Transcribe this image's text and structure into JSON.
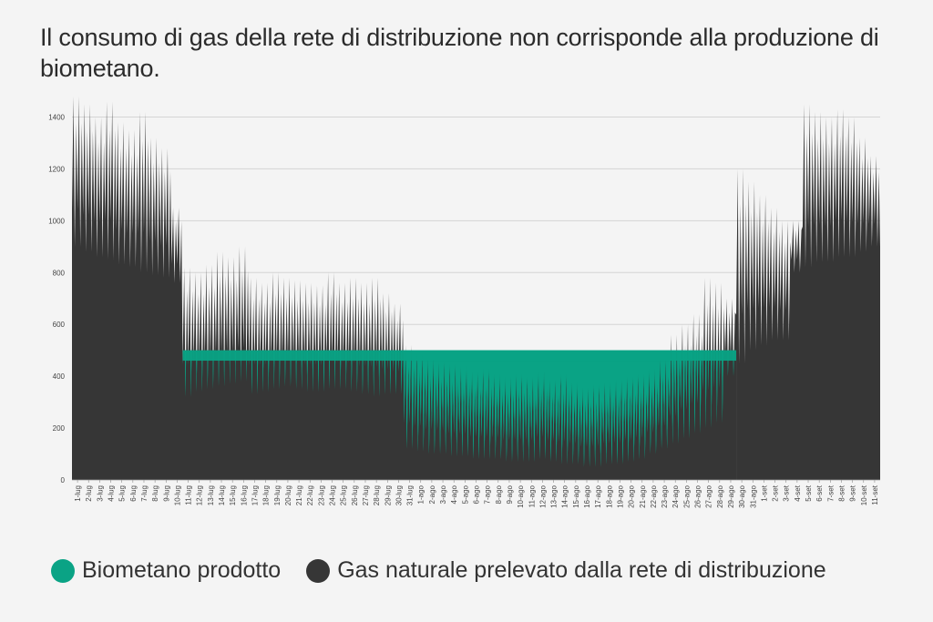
{
  "colors": {
    "biomethane": "#0aa385",
    "natural_gas": "#363636",
    "grid": "#d4d4d4",
    "background": "#f4f4f4"
  },
  "title": "Il consumo di gas della rete di distribuzione non corrisponde alla produzione di biometano.",
  "legend": {
    "biomethane": "Biometano prodotto",
    "natural_gas": "Gas naturale prelevato dalla rete di distribuzione"
  },
  "chart_data": {
    "type": "area",
    "title": "Il consumo di gas della rete di distribuzione non corrisponde alla produzione di biometano.",
    "xlabel": "",
    "ylabel": "",
    "ylim": [
      0,
      1500
    ],
    "yticks": [
      0,
      200,
      400,
      600,
      800,
      1000,
      1200,
      1400
    ],
    "grid": true,
    "legend_position": "bottom",
    "categories": [
      "1-lug",
      "2-lug",
      "3-lug",
      "4-lug",
      "5-lug",
      "6-lug",
      "7-lug",
      "8-lug",
      "9-lug",
      "10-lug",
      "11-lug",
      "12-lug",
      "13-lug",
      "14-lug",
      "15-lug",
      "16-lug",
      "17-lug",
      "18-lug",
      "19-lug",
      "20-lug",
      "21-lug",
      "22-lug",
      "23-lug",
      "24-lug",
      "25-lug",
      "26-lug",
      "27-lug",
      "28-lug",
      "29-lug",
      "30-lug",
      "31-lug",
      "1-ago",
      "2-ago",
      "3-ago",
      "4-ago",
      "5-ago",
      "6-ago",
      "7-ago",
      "8-ago",
      "9-ago",
      "10-ago",
      "11-ago",
      "12-ago",
      "13-ago",
      "14-ago",
      "15-ago",
      "16-ago",
      "17-ago",
      "18-ago",
      "19-ago",
      "20-ago",
      "21-ago",
      "22-ago",
      "23-ago",
      "24-ago",
      "25-ago",
      "26-ago",
      "27-ago",
      "28-ago",
      "29-ago",
      "30-ago",
      "31-ago",
      "1-set",
      "2-set",
      "3-set",
      "4-set",
      "5-set",
      "6-set",
      "7-set",
      "8-set",
      "9-set",
      "10-set",
      "11-set"
    ],
    "series": [
      {
        "name": "Gas naturale prelevato dalla rete di distribuzione",
        "daily_peak": [
          1480,
          1450,
          1400,
          1460,
          1380,
          1350,
          1420,
          1320,
          1280,
          1050,
          820,
          800,
          830,
          880,
          860,
          900,
          780,
          760,
          800,
          780,
          770,
          760,
          750,
          800,
          760,
          780,
          760,
          780,
          720,
          680,
          520,
          500,
          480,
          460,
          450,
          440,
          420,
          430,
          410,
          400,
          410,
          400,
          420,
          390,
          410,
          380,
          360,
          370,
          380,
          390,
          400,
          410,
          430,
          470,
          560,
          600,
          640,
          780,
          760,
          700,
          1200,
          1150,
          1100,
          1050,
          1000,
          1000,
          1450,
          1420,
          1400,
          1430,
          1400,
          1320,
          1250
        ],
        "daily_min": [
          900,
          880,
          860,
          850,
          830,
          820,
          800,
          790,
          780,
          760,
          320,
          340,
          350,
          360,
          370,
          380,
          330,
          340,
          350,
          360,
          350,
          340,
          340,
          350,
          350,
          340,
          330,
          320,
          330,
          330,
          120,
          110,
          100,
          100,
          90,
          90,
          80,
          80,
          80,
          70,
          70,
          70,
          80,
          70,
          60,
          60,
          50,
          50,
          60,
          60,
          70,
          80,
          100,
          120,
          140,
          160,
          180,
          200,
          220,
          400,
          450,
          500,
          520,
          540,
          540,
          800,
          820,
          840,
          840,
          860,
          860,
          880,
          900
        ]
      },
      {
        "name": "Biometano prodotto",
        "constant_value": 500,
        "x_start": "11-lug",
        "x_end": "29-ago"
      }
    ]
  }
}
